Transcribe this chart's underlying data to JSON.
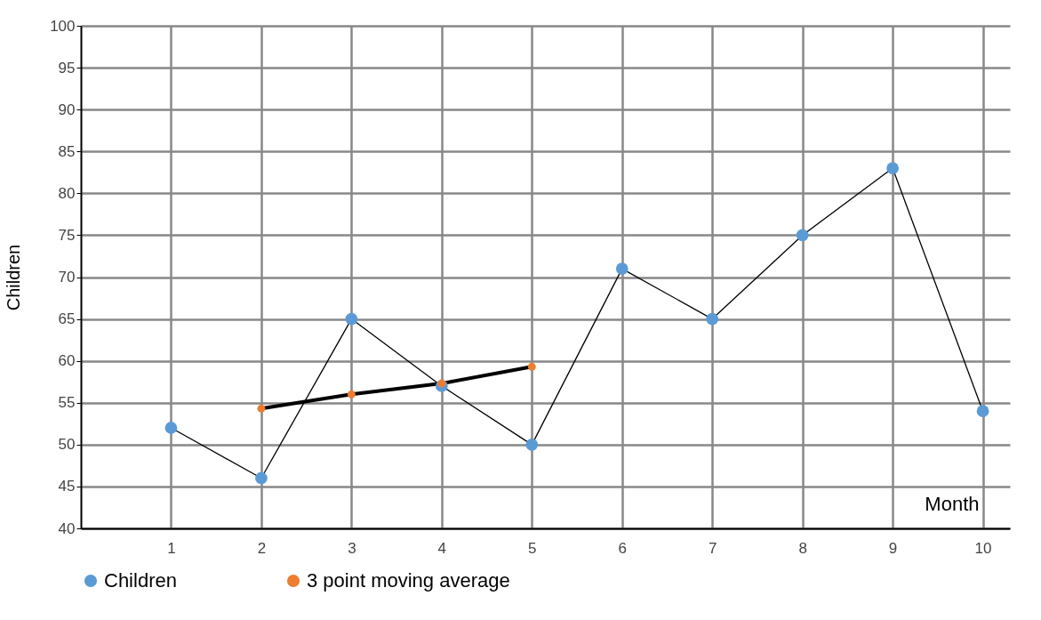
{
  "chart_data": {
    "type": "line",
    "xlabel": "Month",
    "ylabel": "Children",
    "x": [
      1,
      2,
      3,
      4,
      5,
      6,
      7,
      8,
      9,
      10
    ],
    "series": [
      {
        "name": "Children",
        "color": "#5b9bd5",
        "values": [
          52,
          46,
          65,
          57,
          50,
          71,
          65,
          75,
          83,
          54
        ]
      },
      {
        "name": "3 point moving average",
        "color": "#ed7d31",
        "x": [
          2,
          3,
          4,
          5
        ],
        "values": [
          54.3,
          56,
          57.3,
          59.3
        ]
      }
    ],
    "xlim": [
      0,
      10.3
    ],
    "xticks": [
      1,
      2,
      3,
      4,
      5,
      6,
      7,
      8,
      9,
      10
    ],
    "ylim": [
      40,
      100
    ],
    "yticks": [
      40,
      45,
      50,
      55,
      60,
      65,
      70,
      75,
      80,
      85,
      90,
      95,
      100
    ],
    "grid": true,
    "legend": "bottom",
    "marker": "circle",
    "line_style": "solid"
  }
}
